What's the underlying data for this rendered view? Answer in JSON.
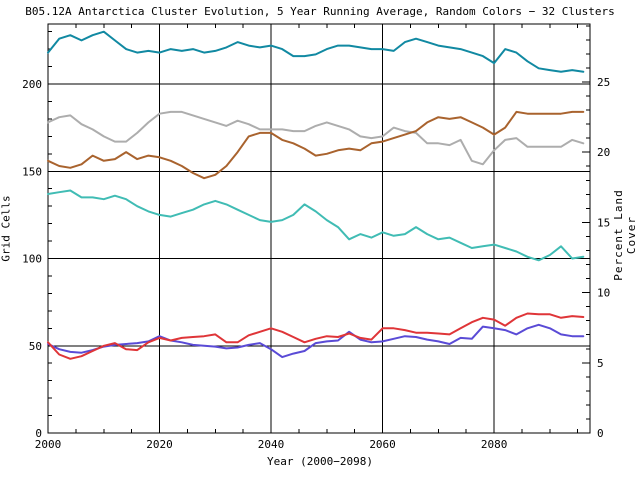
{
  "chart_data": {
    "type": "line",
    "title": "B05.12A Antarctica Cluster Evolution, 5 Year Running Average, Random Colors − 32 Clusters",
    "xlabel": "Year (2000−2098)",
    "ylabel_left": "Grid Cells",
    "ylabel_right": "Percent Land Cover",
    "background": "#ffffff",
    "axis_color": "#000000",
    "grid": true,
    "legend": "none",
    "xlim": [
      2000,
      2097.2
    ],
    "ylim_left": [
      0,
      234.4
    ],
    "ylim_right": [
      0,
      29.13
    ],
    "x_major_ticks": [
      2000,
      2020,
      2040,
      2060,
      2080
    ],
    "x_minor_step": 5,
    "y_left_major_ticks": [
      0,
      50,
      100,
      150,
      200
    ],
    "y_left_minor_step": 10,
    "y_right_major_ticks": [
      0,
      5,
      10,
      15,
      20,
      25
    ],
    "y_right_minor_step": 1,
    "x": [
      2000,
      2002,
      2004,
      2006,
      2008,
      2010,
      2012,
      2014,
      2016,
      2018,
      2020,
      2022,
      2024,
      2026,
      2028,
      2030,
      2032,
      2034,
      2036,
      2038,
      2040,
      2042,
      2044,
      2046,
      2048,
      2050,
      2052,
      2054,
      2056,
      2058,
      2060,
      2062,
      2064,
      2066,
      2068,
      2070,
      2072,
      2074,
      2076,
      2078,
      2080,
      2082,
      2084,
      2086,
      2088,
      2090,
      2092,
      2094,
      2096
    ],
    "series": [
      {
        "name": "cluster-teal",
        "color": "#1189A2",
        "values": [
          218,
          226,
          228,
          225,
          228,
          230,
          225,
          220,
          218,
          219,
          218,
          220,
          219,
          220,
          218,
          219,
          221,
          224,
          222,
          221,
          222,
          220,
          216,
          216,
          217,
          220,
          222,
          222,
          221,
          220,
          220,
          219,
          224,
          226,
          224,
          222,
          221,
          220,
          218,
          216,
          212,
          220,
          218,
          213,
          209,
          208,
          207,
          208,
          207
        ]
      },
      {
        "name": "cluster-gray",
        "color": "#ADADAD",
        "values": [
          178,
          181,
          182,
          177,
          174,
          170,
          167,
          167,
          172,
          178,
          183,
          184,
          184,
          182,
          180,
          178,
          176,
          179,
          177,
          174,
          174,
          174,
          173,
          173,
          176,
          178,
          176,
          174,
          170,
          169,
          170,
          175,
          173,
          172,
          166,
          166,
          165,
          168,
          156,
          154,
          162,
          168,
          169,
          164,
          164,
          164,
          164,
          168,
          166
        ]
      },
      {
        "name": "cluster-brown",
        "color": "#A9632E",
        "values": [
          156,
          153,
          152,
          154,
          159,
          156,
          157,
          161,
          157,
          159,
          158,
          156,
          153,
          149,
          146,
          148,
          153,
          161,
          170,
          172,
          172,
          168,
          166,
          163,
          159,
          160,
          162,
          163,
          162,
          166,
          167,
          169,
          171,
          173,
          178,
          181,
          180,
          181,
          178,
          175,
          171,
          175,
          184,
          183,
          183,
          183,
          183,
          184,
          184
        ]
      },
      {
        "name": "cluster-turquoise",
        "color": "#40BCB4",
        "values": [
          137,
          138,
          139,
          135,
          135,
          134,
          136,
          134,
          130,
          127,
          125,
          124,
          126,
          128,
          131,
          133,
          131,
          128,
          125,
          122,
          121,
          122,
          125,
          131,
          127,
          122,
          118,
          111,
          114,
          112,
          115,
          113,
          114,
          118,
          114,
          111,
          112,
          109,
          106,
          107,
          108,
          106,
          104,
          101,
          99,
          102,
          107,
          100,
          101
        ]
      },
      {
        "name": "cluster-blue",
        "color": "#5A4BD6",
        "values": [
          51,
          48,
          46.5,
          46,
          47.5,
          49.5,
          50.5,
          51,
          51.5,
          52.5,
          55.5,
          53,
          52,
          50.5,
          50,
          49.5,
          48.5,
          49,
          50.5,
          51.5,
          48,
          43.5,
          45.5,
          47,
          51.5,
          52.5,
          53,
          58,
          53.5,
          52,
          52.5,
          54,
          55.5,
          55,
          53.5,
          52.5,
          51,
          54.5,
          54,
          61,
          60,
          59,
          56.5,
          60,
          62,
          60,
          56.5,
          55.5,
          55.5
        ]
      },
      {
        "name": "cluster-red",
        "color": "#DF3538",
        "values": [
          52,
          45,
          42.5,
          44,
          47,
          50,
          51.5,
          48,
          47.5,
          52,
          54.5,
          53,
          54.5,
          55,
          55.5,
          56.5,
          52,
          52,
          56,
          58,
          60,
          58,
          55,
          52,
          54,
          55.5,
          55,
          57,
          54.5,
          53.5,
          60,
          60,
          59,
          57.5,
          57.5,
          57,
          56.5,
          60,
          63.5,
          66,
          65,
          61.5,
          66,
          68.5,
          68,
          68,
          66,
          67,
          66.5
        ]
      }
    ]
  }
}
